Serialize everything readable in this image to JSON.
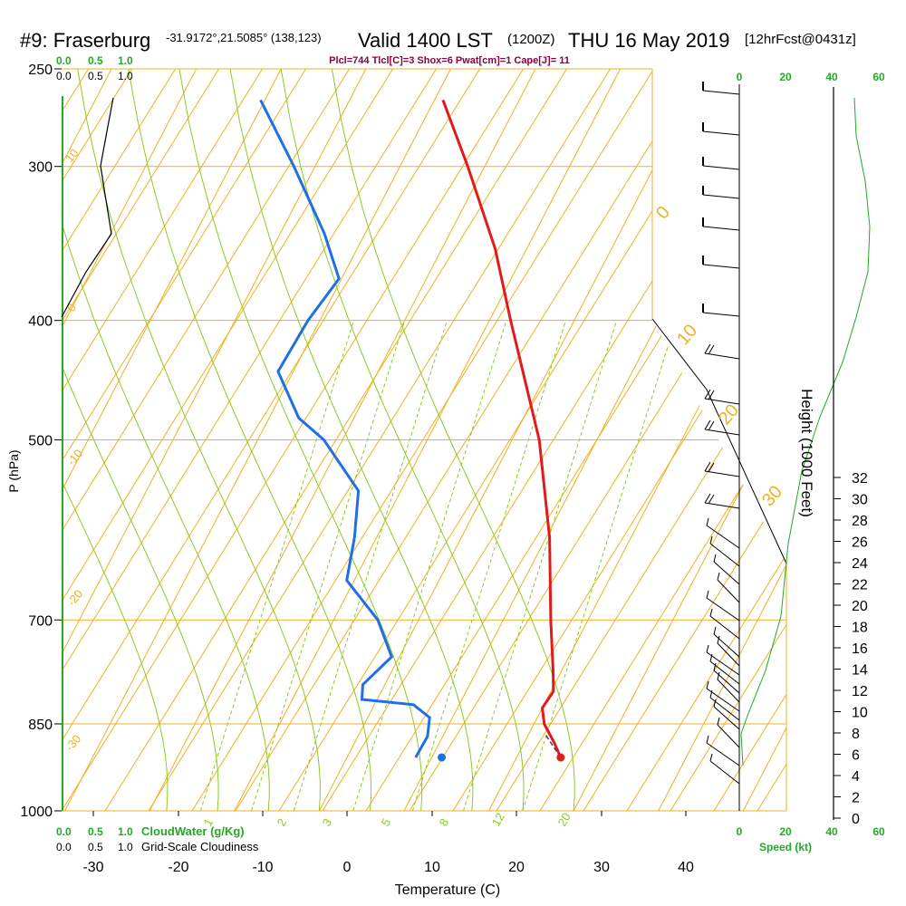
{
  "header": {
    "station": "#9: Fraserburg",
    "coords": "-31.9172°,21.5085° (138,123)",
    "valid": "Valid 1400 LST",
    "zulu": "(1200Z)",
    "date": "THU 16 May 2019",
    "fcst": "[12hrFcst@0431z]",
    "params": "Plcl=744 Tlcl[C]=3 Shox=6 Pwat[cm]=1 Cape[J]= 11"
  },
  "colors": {
    "temperature": "#e31a1c",
    "dewpoint": "#1f6fe5",
    "isotherm": "#f0b020",
    "dry_adiabat": "#88cc22",
    "cloud_scale": "#22aa22",
    "height_label": "#8b0045"
  },
  "chart_data": {
    "type": "line",
    "title": "",
    "xlabel": "Temperature (C)",
    "ylabel": "P (hPa)",
    "right_label": "Height (1000 Feet)",
    "x_ticks": [
      "-30",
      "-20",
      "-10",
      "0",
      "10",
      "20",
      "30",
      "40"
    ],
    "y_ticks": [
      "250",
      "300",
      "400",
      "500",
      "700",
      "850",
      "1000"
    ],
    "height_ticks": [
      "0",
      "2",
      "4",
      "6",
      "8",
      "10",
      "12",
      "14",
      "16",
      "18",
      "20",
      "22",
      "24",
      "26",
      "28",
      "30",
      "32"
    ],
    "cloud_ticks_top": [
      "0.0",
      "0.5",
      "1.0"
    ],
    "cloud_ticks_top_black": [
      "0.0",
      "0.5",
      "1.0"
    ],
    "cloud_ticks_bottom": [
      "0.0",
      "0.5",
      "1.0"
    ],
    "cloud_ticks_bottom_black": [
      "0.0",
      "0.5",
      "1.0"
    ],
    "cloudwater_label": "CloudWater (g/Kg)",
    "cloudiness_label": "Grid-Scale Cloudiness",
    "speed_ticks": [
      "0",
      "20",
      "40",
      "60"
    ],
    "speed_label": "Speed (kt)",
    "isotherm_labels": [
      "10",
      "0",
      "-10",
      "-20",
      "-30",
      "0",
      "10",
      "20",
      "30"
    ],
    "mixing_ratio_labels": [
      "1",
      "2",
      "3",
      "5",
      "8",
      "12",
      "20"
    ],
    "temperature_profile": [
      {
        "p": 905,
        "t": 25.2
      },
      {
        "p": 880,
        "t": 23.5
      },
      {
        "p": 850,
        "t": 21.2
      },
      {
        "p": 825,
        "t": 20.0
      },
      {
        "p": 800,
        "t": 20.3
      },
      {
        "p": 770,
        "t": 19.0
      },
      {
        "p": 700,
        "t": 15.6
      },
      {
        "p": 600,
        "t": 10.4
      },
      {
        "p": 500,
        "t": 3.2
      },
      {
        "p": 400,
        "t": -7.5
      },
      {
        "p": 350,
        "t": -13.7
      },
      {
        "p": 300,
        "t": -22.0
      },
      {
        "p": 265,
        "t": -29.0
      }
    ],
    "dewpoint_profile": [
      {
        "p": 905,
        "t": 8.1
      },
      {
        "p": 870,
        "t": 8.2
      },
      {
        "p": 840,
        "t": 7.3
      },
      {
        "p": 820,
        "t": 4.6
      },
      {
        "p": 812,
        "t": -1.8
      },
      {
        "p": 790,
        "t": -2.6
      },
      {
        "p": 750,
        "t": -0.9
      },
      {
        "p": 700,
        "t": -4.8
      },
      {
        "p": 650,
        "t": -10.9
      },
      {
        "p": 600,
        "t": -12.6
      },
      {
        "p": 550,
        "t": -15.0
      },
      {
        "p": 500,
        "t": -22.2
      },
      {
        "p": 480,
        "t": -26.5
      },
      {
        "p": 440,
        "t": -31.8
      },
      {
        "p": 400,
        "t": -31.4
      },
      {
        "p": 370,
        "t": -30.3
      },
      {
        "p": 340,
        "t": -34.8
      },
      {
        "p": 300,
        "t": -42.5
      },
      {
        "p": 265,
        "t": -50.5
      }
    ],
    "surface_temperature": 25.2,
    "surface_dewpoint": 8.1,
    "surface_pressure": 905
  }
}
